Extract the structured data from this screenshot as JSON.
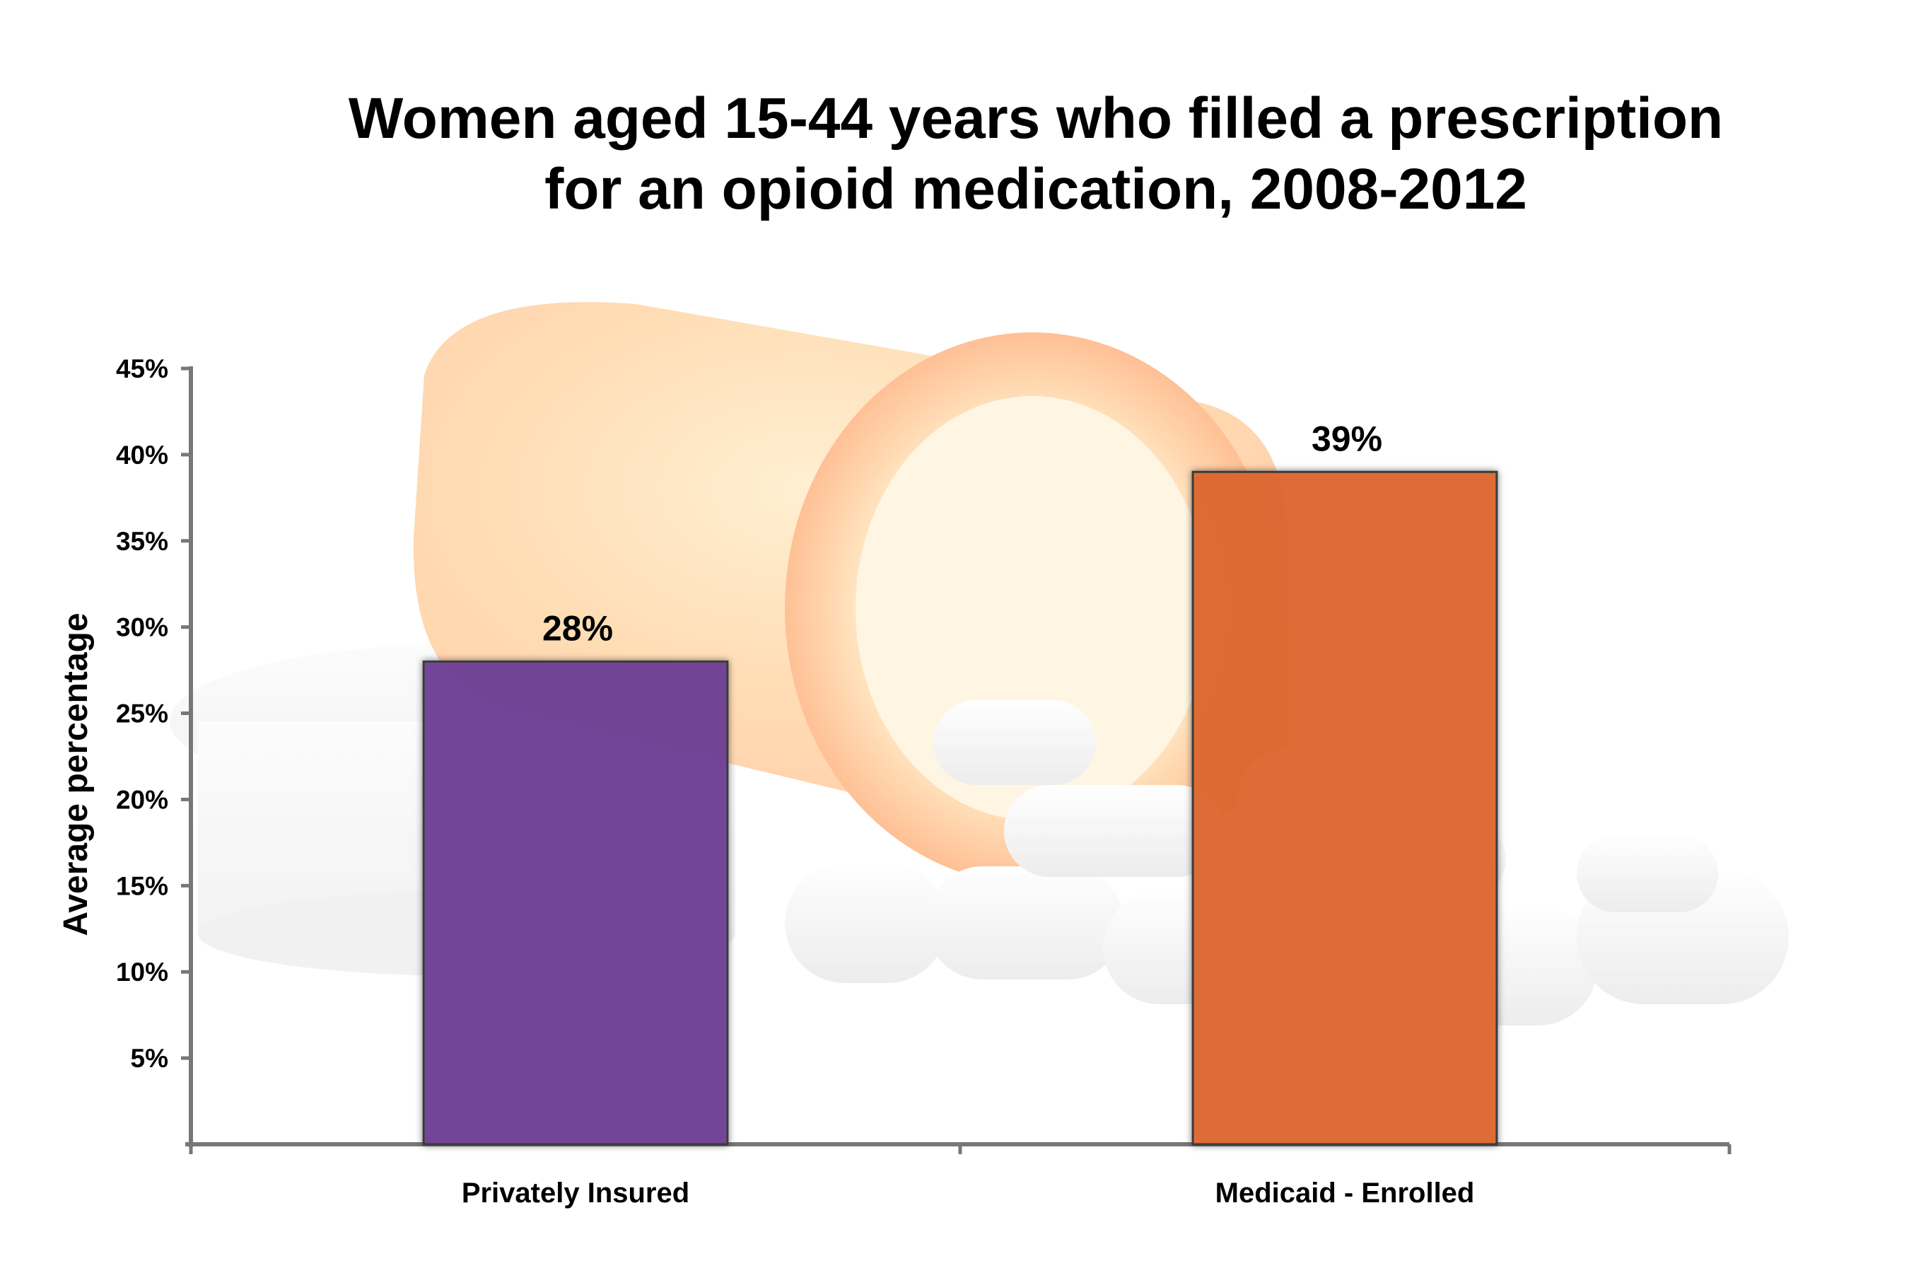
{
  "chart_data": {
    "type": "bar",
    "title_lines": [
      "Women aged 15-44 years who filled a prescription",
      "for an opioid medication, 2008-2012"
    ],
    "ylabel": "Average percentage",
    "xlabel": "",
    "ylim": [
      0,
      45
    ],
    "yticks": [
      "5%",
      "10%",
      "15%",
      "20%",
      "25%",
      "30%",
      "35%",
      "40%",
      "45%"
    ],
    "ytick_values": [
      5,
      10,
      15,
      20,
      25,
      30,
      35,
      40,
      45
    ],
    "categories": [
      "Privately Insured",
      "Medicaid - Enrolled"
    ],
    "values": [
      28,
      39
    ],
    "data_labels": [
      "28%",
      "39%"
    ],
    "colors": [
      "#6f3f98",
      "#e0682f"
    ],
    "grid": false,
    "background": "photo-of-spilled-orange-pill-bottle-and-white-pills"
  }
}
